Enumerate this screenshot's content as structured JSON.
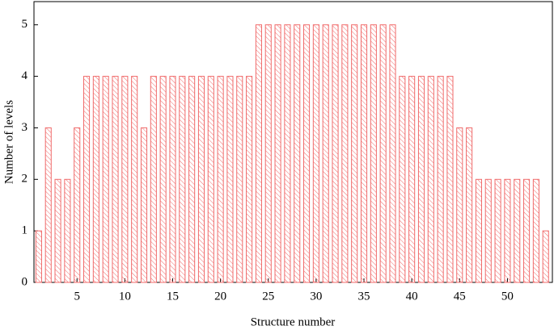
{
  "chart_data": {
    "type": "bar",
    "x_label": "Structure number",
    "y_label": "Number of levels",
    "x": [
      1,
      2,
      3,
      4,
      5,
      6,
      7,
      8,
      9,
      10,
      11,
      12,
      13,
      14,
      15,
      16,
      17,
      18,
      19,
      20,
      21,
      22,
      23,
      24,
      25,
      26,
      27,
      28,
      29,
      30,
      31,
      32,
      33,
      34,
      35,
      36,
      37,
      38,
      39,
      40,
      41,
      42,
      43,
      44,
      45,
      46,
      47,
      48,
      49,
      50,
      51,
      52,
      53,
      54
    ],
    "values": [
      1,
      3,
      2,
      2,
      3,
      4,
      4,
      4,
      4,
      4,
      4,
      3,
      4,
      4,
      4,
      4,
      4,
      4,
      4,
      4,
      4,
      4,
      4,
      5,
      5,
      5,
      5,
      5,
      5,
      5,
      5,
      5,
      5,
      5,
      5,
      5,
      5,
      5,
      4,
      4,
      4,
      4,
      4,
      4,
      3,
      3,
      2,
      2,
      2,
      2,
      2,
      2,
      2,
      1
    ],
    "color": "#f06a6a",
    "hatch": true,
    "xlim": [
      0.5,
      54.7
    ],
    "xticks": [
      5,
      10,
      15,
      20,
      25,
      30,
      35,
      40,
      45,
      50
    ],
    "ylim": [
      0,
      5.45
    ],
    "yticks": [
      0,
      1,
      2,
      3,
      4,
      5
    ]
  }
}
